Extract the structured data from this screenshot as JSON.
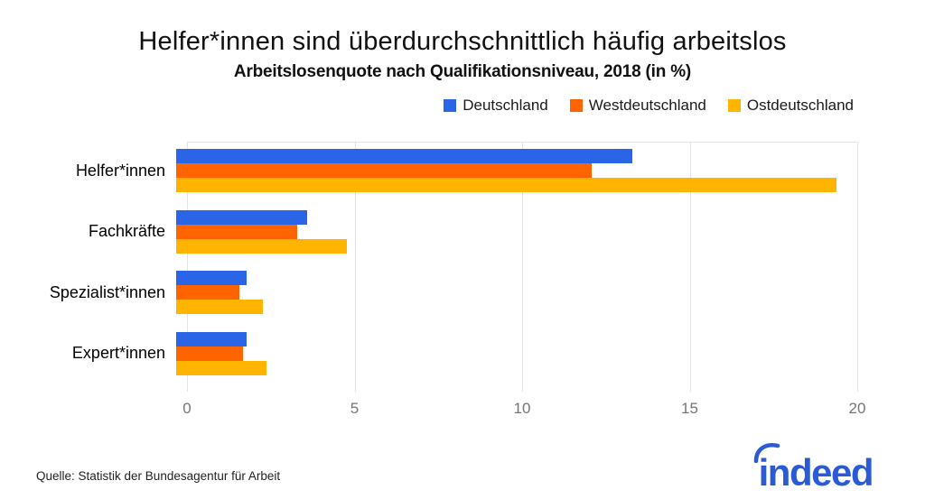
{
  "header": {
    "title": "Helfer*innen sind überdurchschnittlich häufig arbeitslos",
    "subtitle": "Arbeitslosenquote nach Qualifikationsniveau, 2018 (in %)"
  },
  "chart_data": {
    "type": "bar",
    "orientation": "horizontal",
    "title": "Helfer*innen sind überdurchschnittlich häufig arbeitslos",
    "subtitle": "Arbeitslosenquote nach Qualifikationsniveau, 2018 (in %)",
    "categories": [
      "Helfer*innen",
      "Fachkräfte",
      "Spezialist*innen",
      "Expert*innen"
    ],
    "series": [
      {
        "name": "Deutschland",
        "color": "#2a65e8",
        "values": [
          13.6,
          3.9,
          2.1,
          2.1
        ]
      },
      {
        "name": "Westdeutschland",
        "color": "#ff6400",
        "values": [
          12.4,
          3.6,
          1.9,
          2.0
        ]
      },
      {
        "name": "Ostdeutschland",
        "color": "#ffb400",
        "values": [
          19.7,
          5.1,
          2.6,
          2.7
        ]
      }
    ],
    "xlim": [
      0,
      20
    ],
    "xticks": [
      0,
      5,
      10,
      15,
      20
    ],
    "xlabel": "",
    "ylabel": "",
    "grid": true,
    "legend_position": "top-right"
  },
  "footer": {
    "source": "Quelle: Statistik der Bundesagentur für Arbeit",
    "logo_text": "indeed"
  },
  "colors": {
    "deutschland": "#2a65e8",
    "westdeutschland": "#ff6400",
    "ostdeutschland": "#ffb400",
    "grid": "#e3e3e3",
    "tick_text": "#757575",
    "logo_blue": "#2a5ad6"
  }
}
